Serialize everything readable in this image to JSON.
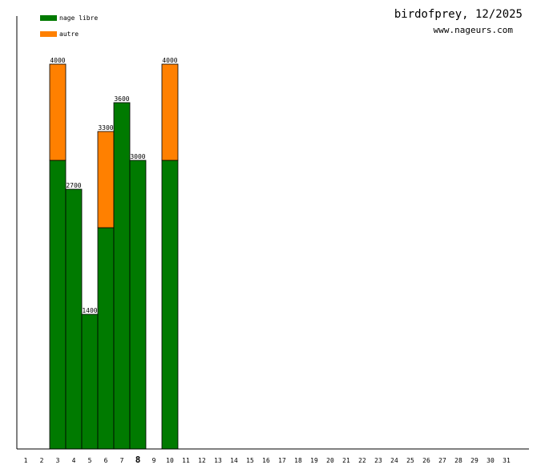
{
  "header": {
    "title": "birdofprey, 12/2025",
    "site": "www.nageurs.com"
  },
  "colors": {
    "nage_libre": "#007a00",
    "autre": "#ff8000",
    "axis": "#000000",
    "text": "#000000"
  },
  "chart_data": {
    "type": "bar",
    "stacked": true,
    "title": "birdofprey, 12/2025",
    "xlabel": "",
    "ylabel": "",
    "ylim": [
      0,
      4500
    ],
    "grid": false,
    "legend": {
      "placement": "top-left",
      "entries": [
        "nage libre",
        "autre"
      ]
    },
    "categories": [
      "1",
      "2",
      "3",
      "4",
      "5",
      "6",
      "7",
      "8",
      "9",
      "10",
      "11",
      "12",
      "13",
      "14",
      "15",
      "16",
      "17",
      "18",
      "19",
      "20",
      "21",
      "22",
      "23",
      "24",
      "25",
      "26",
      "27",
      "28",
      "29",
      "30",
      "31"
    ],
    "highlighted_category": "8",
    "series": [
      {
        "name": "nage libre",
        "color": "#007a00",
        "values": [
          0,
          0,
          3000,
          2700,
          1400,
          2300,
          3600,
          3000,
          0,
          3000,
          0,
          0,
          0,
          0,
          0,
          0,
          0,
          0,
          0,
          0,
          0,
          0,
          0,
          0,
          0,
          0,
          0,
          0,
          0,
          0,
          0
        ]
      },
      {
        "name": "autre",
        "color": "#ff8000",
        "values": [
          0,
          0,
          1000,
          0,
          0,
          1000,
          0,
          0,
          0,
          1000,
          0,
          0,
          0,
          0,
          0,
          0,
          0,
          0,
          0,
          0,
          0,
          0,
          0,
          0,
          0,
          0,
          0,
          0,
          0,
          0,
          0
        ]
      }
    ],
    "totals": [
      null,
      null,
      "4000",
      "2700",
      "1400",
      "3300",
      "3600",
      "3000",
      null,
      "4000",
      null,
      null,
      null,
      null,
      null,
      null,
      null,
      null,
      null,
      null,
      null,
      null,
      null,
      null,
      null,
      null,
      null,
      null,
      null,
      null,
      null
    ]
  }
}
